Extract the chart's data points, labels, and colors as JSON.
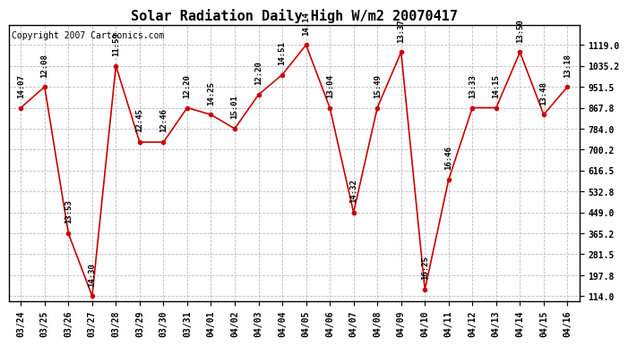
{
  "title": "Solar Radiation Daily High W/m2 20070417",
  "copyright": "Copyright 2007 Cartronics.com",
  "dates": [
    "03/24",
    "03/25",
    "03/26",
    "03/27",
    "03/28",
    "03/29",
    "03/30",
    "03/31",
    "04/01",
    "04/02",
    "04/03",
    "04/04",
    "04/05",
    "04/06",
    "04/07",
    "04/08",
    "04/09",
    "04/10",
    "04/11",
    "04/12",
    "04/13",
    "04/14",
    "04/15",
    "04/16"
  ],
  "values": [
    867.8,
    951.5,
    365.2,
    114.0,
    1035.2,
    730.0,
    730.0,
    867.8,
    840.0,
    784.0,
    920.0,
    1000.0,
    1119.0,
    867.8,
    449.0,
    867.8,
    1090.0,
    140.0,
    580.0,
    867.8,
    867.8,
    1090.0,
    840.0,
    951.5
  ],
  "labels": [
    "14:07",
    "12:08",
    "13:53",
    "14:30",
    "11:59",
    "12:45",
    "12:46",
    "12:20",
    "14:25",
    "15:01",
    "12:20",
    "14:51",
    "14:14",
    "13:04",
    "14:32",
    "15:49",
    "13:37",
    "16:25",
    "16:46",
    "13:33",
    "14:15",
    "13:50",
    "13:48",
    "13:18"
  ],
  "yticks": [
    114.0,
    197.8,
    281.5,
    365.2,
    449.0,
    532.8,
    616.5,
    700.2,
    784.0,
    867.8,
    951.5,
    1035.2,
    1119.0
  ],
  "ymin": 114.0,
  "ymax": 1119.0,
  "line_color": "#cc0000",
  "marker_color": "#cc0000",
  "background_color": "#ffffff",
  "grid_color": "#bbbbbb",
  "title_fontsize": 11,
  "label_fontsize": 6.5,
  "tick_fontsize": 7,
  "copyright_fontsize": 7
}
